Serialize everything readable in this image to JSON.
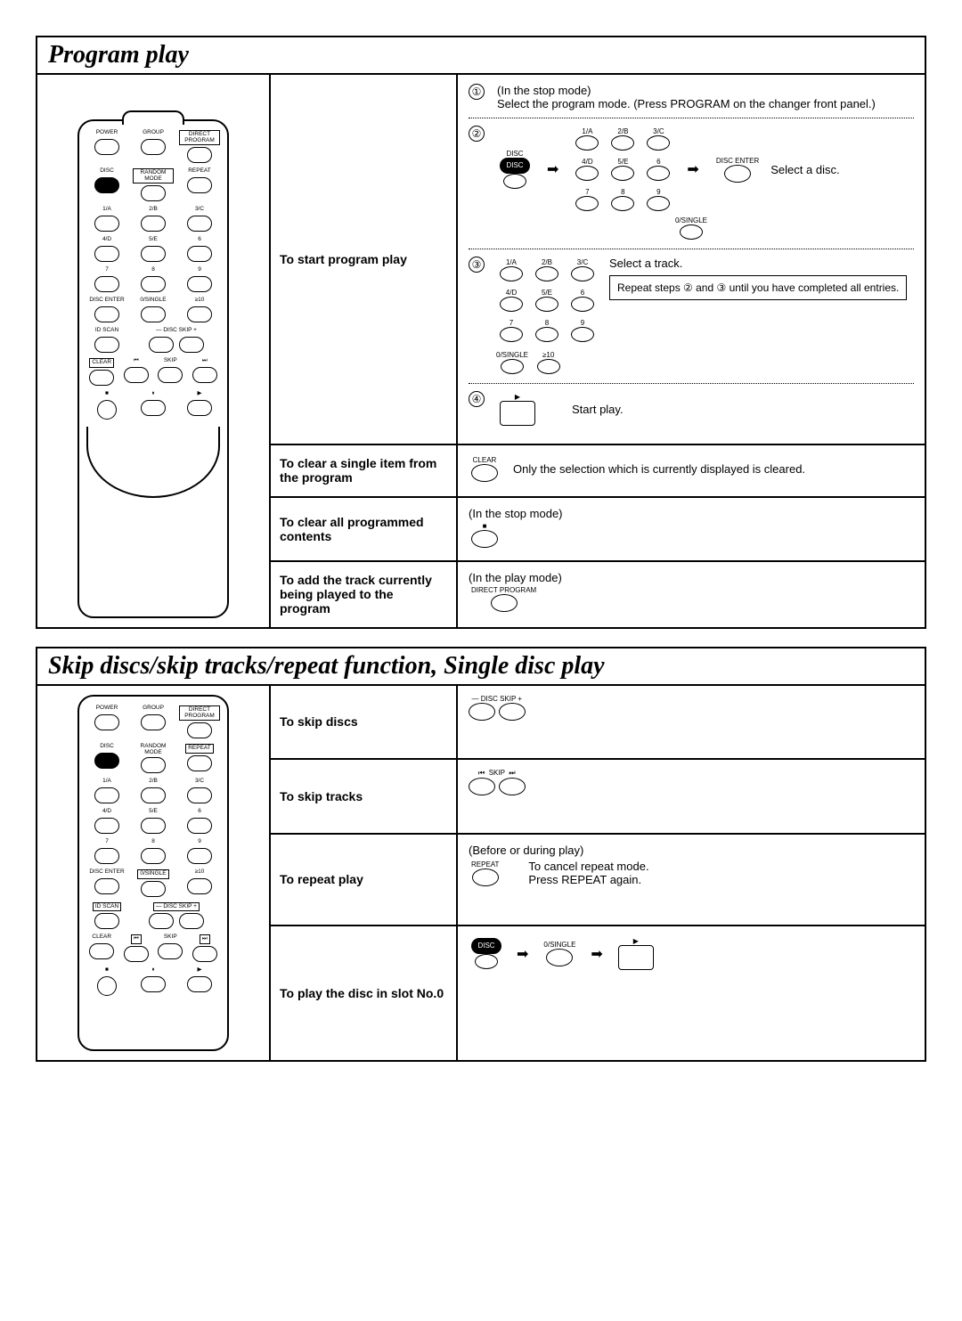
{
  "sections": {
    "program": {
      "title": "Program play",
      "remote": {
        "rows": [
          {
            "type": "row3",
            "cells": [
              {
                "label": "POWER"
              },
              {
                "label": "GROUP"
              },
              {
                "label": "DIRECT PROGRAM",
                "boxed": true
              }
            ]
          },
          {
            "type": "row3",
            "cells": [
              {
                "label": "DISC",
                "filled": true
              },
              {
                "label": "RANDOM MODE",
                "boxed": true
              },
              {
                "label": "REPEAT"
              }
            ]
          },
          {
            "type": "row3",
            "cells": [
              {
                "label": "1/A"
              },
              {
                "label": "2/B"
              },
              {
                "label": "3/C"
              }
            ]
          },
          {
            "type": "row3",
            "cells": [
              {
                "label": "4/D"
              },
              {
                "label": "5/E"
              },
              {
                "label": "6"
              }
            ]
          },
          {
            "type": "row3",
            "cells": [
              {
                "label": "7"
              },
              {
                "label": "8"
              },
              {
                "label": "9"
              }
            ]
          },
          {
            "type": "row3",
            "cells": [
              {
                "label": "DISC ENTER"
              },
              {
                "label": "0/SINGLE"
              },
              {
                "label": "≥10"
              }
            ]
          },
          {
            "type": "row3",
            "cells": [
              {
                "label": "ID SCAN"
              },
              {
                "label": "— DISC SKIP +",
                "span": 2
              }
            ]
          },
          {
            "type": "row4",
            "cells": [
              {
                "label": "CLEAR",
                "boxed": true
              },
              {
                "label": "⏮"
              },
              {
                "label": "SKIP"
              },
              {
                "label": "⏭"
              }
            ]
          },
          {
            "type": "row3",
            "cells": [
              {
                "label": "■",
                "circle": true
              },
              {
                "label": "⏸"
              },
              {
                "label": "▶"
              }
            ]
          }
        ]
      },
      "operations": {
        "start": "To start program play",
        "clearSingle": "To clear a single item from the program",
        "clearAll": "To clear all programmed contents",
        "addCurrent": "To add the track currently being played to the program"
      },
      "steps": {
        "s1": {
          "num": "①",
          "mode": "(In the stop mode)",
          "text": "Select the program mode. (Press PROGRAM on the changer front panel.)"
        },
        "s2": {
          "num": "②",
          "right_label": "Select a disc.",
          "disc_label": "DISC",
          "enter_label": "DISC ENTER",
          "keypad": [
            "1/A",
            "2/B",
            "3/C",
            "4/D",
            "5/E",
            "6",
            "7",
            "8",
            "9"
          ],
          "bottom": "0/SINGLE"
        },
        "s3": {
          "num": "③",
          "right_label": "Select a track.",
          "note": "Repeat steps ② and ③ until you have completed all entries.",
          "keypad": [
            "1/A",
            "2/B",
            "3/C",
            "4/D",
            "5/E",
            "6",
            "7",
            "8",
            "9"
          ],
          "bottom_left": "0/SINGLE",
          "bottom_right": "≥10"
        },
        "s4": {
          "num": "④",
          "symbol": "▶",
          "text": "Start play."
        },
        "clearSingle": {
          "label": "CLEAR",
          "text": "Only the selection which is currently displayed is cleared."
        },
        "clearAll": {
          "mode": "(In the stop mode)",
          "symbol": "■"
        },
        "addCurrent": {
          "mode": "(In the play mode)",
          "label": "DIRECT PROGRAM"
        }
      }
    },
    "skip": {
      "title": "Skip discs/skip tracks/repeat function, Single disc play",
      "remote": {
        "rows": [
          {
            "type": "row3",
            "cells": [
              {
                "label": "POWER"
              },
              {
                "label": "GROUP"
              },
              {
                "label": "DIRECT PROGRAM",
                "boxed": true
              }
            ]
          },
          {
            "type": "row3",
            "cells": [
              {
                "label": "DISC",
                "filled": true
              },
              {
                "label": "RANDOM MODE"
              },
              {
                "label": "REPEAT",
                "boxed": true
              }
            ]
          },
          {
            "type": "row3",
            "cells": [
              {
                "label": "1/A"
              },
              {
                "label": "2/B"
              },
              {
                "label": "3/C"
              }
            ]
          },
          {
            "type": "row3",
            "cells": [
              {
                "label": "4/D"
              },
              {
                "label": "5/E"
              },
              {
                "label": "6"
              }
            ]
          },
          {
            "type": "row3",
            "cells": [
              {
                "label": "7"
              },
              {
                "label": "8"
              },
              {
                "label": "9"
              }
            ]
          },
          {
            "type": "row3",
            "cells": [
              {
                "label": "DISC ENTER"
              },
              {
                "label": "0/SINGLE",
                "boxed": true
              },
              {
                "label": "≥10"
              }
            ]
          },
          {
            "type": "row3",
            "cells": [
              {
                "label": "ID SCAN",
                "boxed": true
              },
              {
                "label": "— DISC SKIP +",
                "span": 2,
                "boxed": true
              }
            ]
          },
          {
            "type": "row4",
            "cells": [
              {
                "label": "CLEAR"
              },
              {
                "label": "⏮",
                "boxed": true
              },
              {
                "label": "SKIP"
              },
              {
                "label": "⏭",
                "boxed": true
              }
            ]
          },
          {
            "type": "row3",
            "cells": [
              {
                "label": "■",
                "circle": true
              },
              {
                "label": "⏸"
              },
              {
                "label": "▶"
              }
            ]
          }
        ]
      },
      "operations": {
        "skipDiscs": "To skip discs",
        "skipTracks": "To skip tracks",
        "repeat": "To repeat play",
        "slot0": "To play the disc in slot No.0"
      },
      "details": {
        "skipDiscs": {
          "label": "— DISC SKIP +"
        },
        "skipTracks": {
          "label": "SKIP",
          "left": "⏮",
          "right": "⏭"
        },
        "repeat": {
          "mode": "(Before or during play)",
          "btn": "REPEAT",
          "cancel1": "To cancel repeat mode.",
          "cancel2": "Press REPEAT again."
        },
        "slot0": {
          "disc": "DISC",
          "single": "0/SINGLE",
          "play": "▶"
        }
      }
    }
  }
}
